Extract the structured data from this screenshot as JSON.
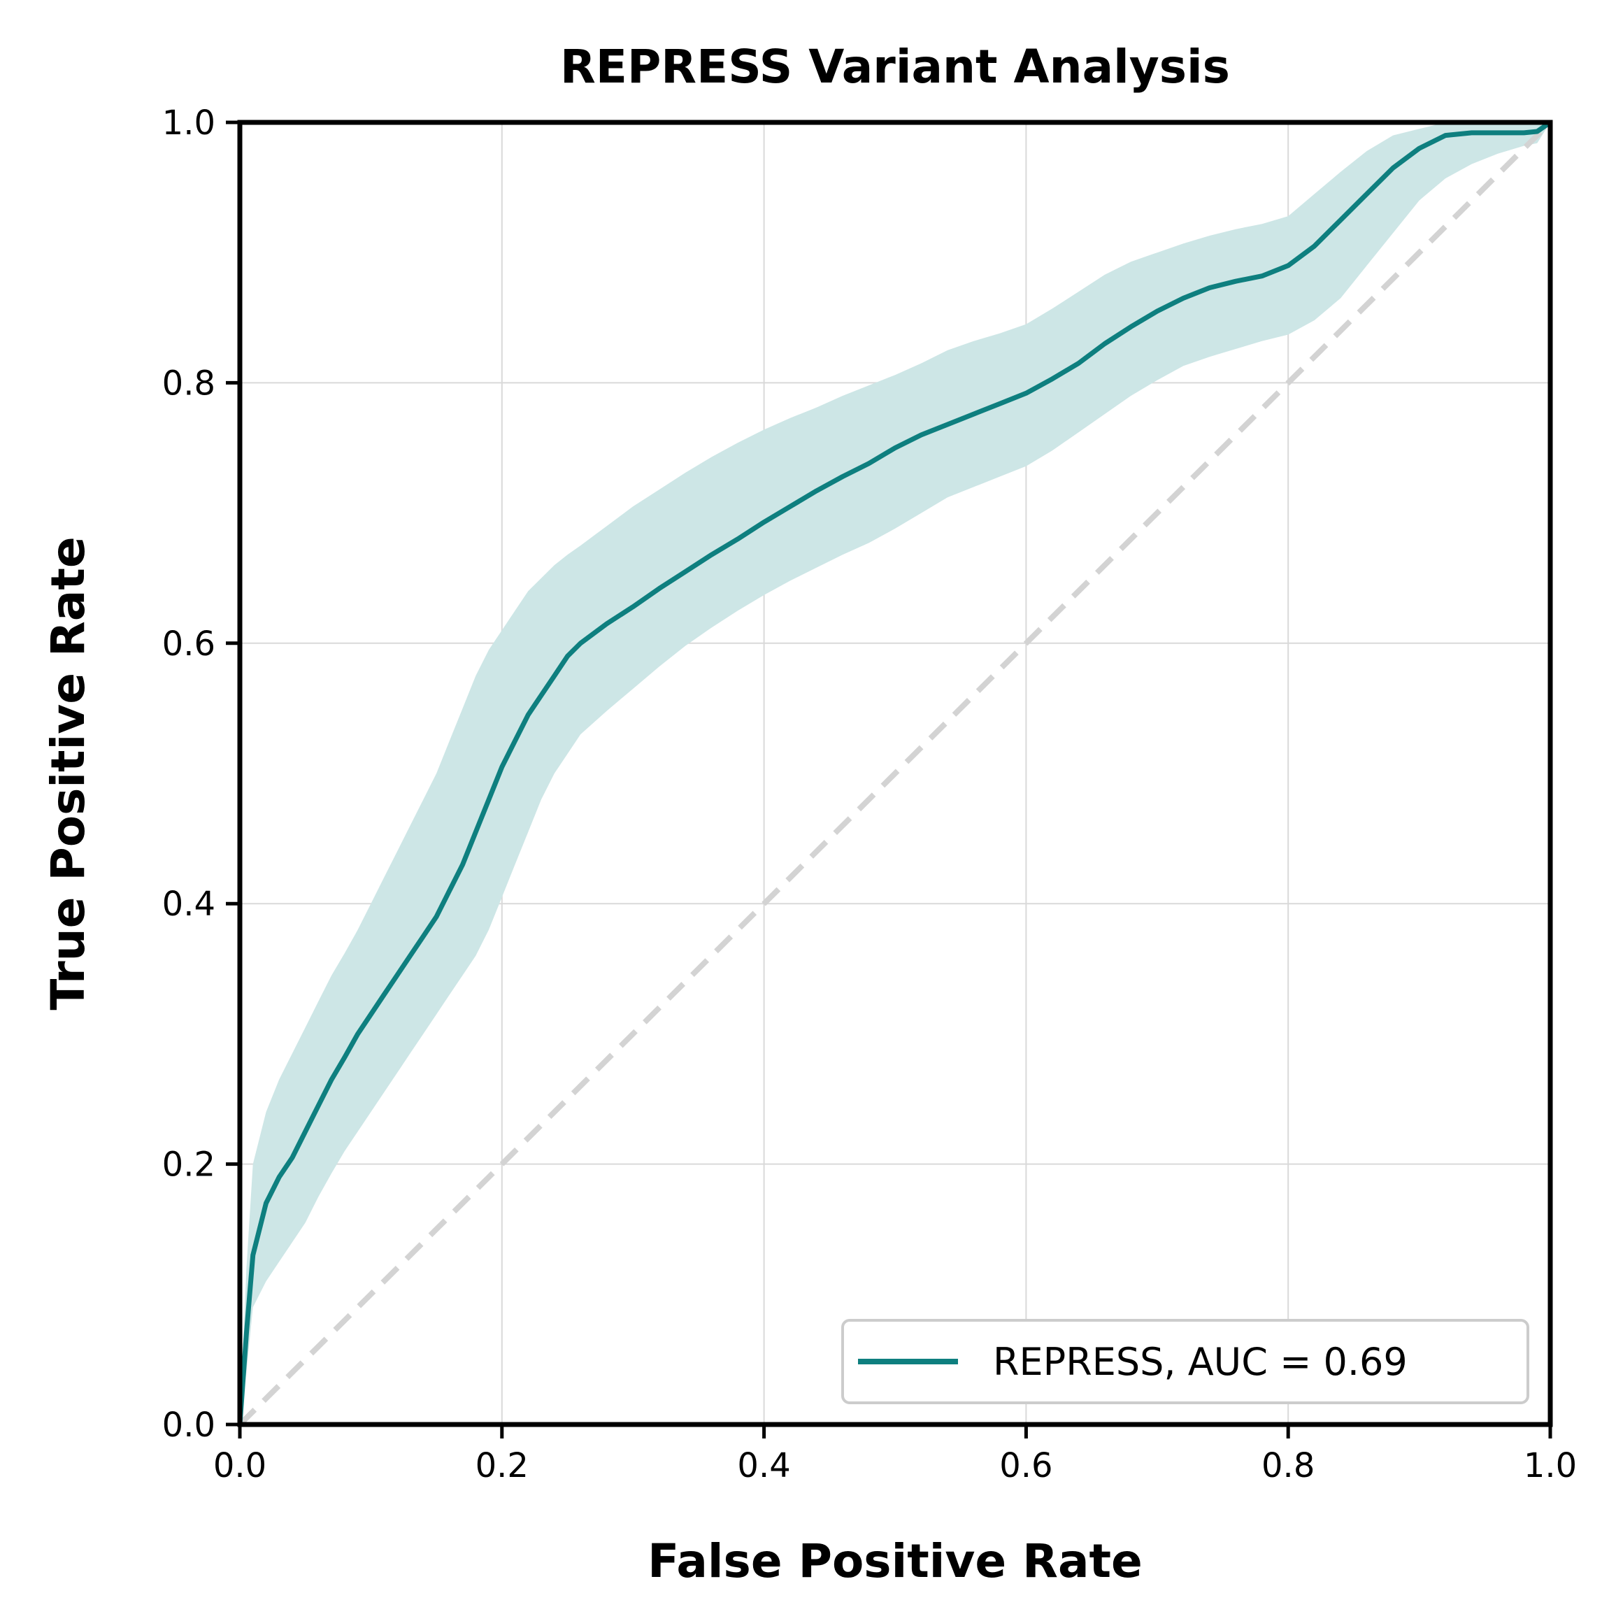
{
  "chart_data": {
    "type": "line",
    "title": "REPRESS Variant Analysis",
    "xlabel": "False Positive Rate",
    "ylabel": "True Positive Rate",
    "xlim": [
      0.0,
      1.0
    ],
    "ylim": [
      0.0,
      1.0
    ],
    "xticks": [
      "0.0",
      "0.2",
      "0.4",
      "0.6",
      "0.8",
      "1.0"
    ],
    "yticks": [
      "0.0",
      "0.2",
      "0.4",
      "0.6",
      "0.8",
      "1.0"
    ],
    "grid": true,
    "legend_position": "lower-right",
    "colors": {
      "roc": "#0e7f7f",
      "band": "#cde6e6",
      "chance": "#d3d3d3",
      "grid": "#d9d9d9",
      "axes": "#000000"
    },
    "series": [
      {
        "name": "REPRESS, AUC = 0.69",
        "x": [
          0.0,
          0.005,
          0.01,
          0.02,
          0.03,
          0.04,
          0.05,
          0.06,
          0.07,
          0.08,
          0.09,
          0.1,
          0.11,
          0.12,
          0.13,
          0.14,
          0.15,
          0.16,
          0.17,
          0.18,
          0.19,
          0.2,
          0.21,
          0.22,
          0.23,
          0.24,
          0.25,
          0.26,
          0.28,
          0.3,
          0.32,
          0.34,
          0.36,
          0.38,
          0.4,
          0.42,
          0.44,
          0.46,
          0.48,
          0.5,
          0.52,
          0.54,
          0.56,
          0.58,
          0.6,
          0.62,
          0.64,
          0.66,
          0.68,
          0.7,
          0.72,
          0.74,
          0.76,
          0.78,
          0.8,
          0.82,
          0.84,
          0.86,
          0.88,
          0.9,
          0.92,
          0.94,
          0.96,
          0.98,
          0.99,
          1.0
        ],
        "y": [
          0.0,
          0.07,
          0.13,
          0.17,
          0.19,
          0.205,
          0.225,
          0.245,
          0.265,
          0.282,
          0.3,
          0.315,
          0.33,
          0.345,
          0.36,
          0.375,
          0.39,
          0.41,
          0.43,
          0.455,
          0.48,
          0.505,
          0.525,
          0.545,
          0.56,
          0.575,
          0.59,
          0.6,
          0.615,
          0.628,
          0.642,
          0.655,
          0.668,
          0.68,
          0.693,
          0.705,
          0.717,
          0.728,
          0.738,
          0.75,
          0.76,
          0.768,
          0.776,
          0.784,
          0.792,
          0.803,
          0.815,
          0.83,
          0.843,
          0.855,
          0.865,
          0.873,
          0.878,
          0.882,
          0.89,
          0.905,
          0.925,
          0.945,
          0.965,
          0.98,
          0.99,
          0.992,
          0.992,
          0.992,
          0.993,
          1.0
        ],
        "upper": [
          0.0,
          0.12,
          0.2,
          0.24,
          0.265,
          0.285,
          0.305,
          0.325,
          0.345,
          0.362,
          0.38,
          0.4,
          0.42,
          0.44,
          0.46,
          0.48,
          0.5,
          0.525,
          0.55,
          0.575,
          0.595,
          0.61,
          0.625,
          0.64,
          0.65,
          0.66,
          0.668,
          0.675,
          0.69,
          0.705,
          0.718,
          0.731,
          0.743,
          0.754,
          0.764,
          0.773,
          0.781,
          0.79,
          0.798,
          0.806,
          0.815,
          0.825,
          0.832,
          0.838,
          0.845,
          0.857,
          0.87,
          0.883,
          0.893,
          0.9,
          0.907,
          0.913,
          0.918,
          0.922,
          0.928,
          0.945,
          0.962,
          0.978,
          0.99,
          0.995,
          1.0,
          1.0,
          1.0,
          1.0,
          1.0,
          1.0
        ],
        "lower": [
          0.0,
          0.04,
          0.09,
          0.11,
          0.125,
          0.14,
          0.155,
          0.175,
          0.193,
          0.21,
          0.225,
          0.24,
          0.255,
          0.27,
          0.285,
          0.3,
          0.315,
          0.33,
          0.345,
          0.36,
          0.38,
          0.405,
          0.43,
          0.455,
          0.48,
          0.5,
          0.515,
          0.53,
          0.548,
          0.565,
          0.582,
          0.598,
          0.612,
          0.625,
          0.637,
          0.648,
          0.658,
          0.668,
          0.677,
          0.688,
          0.7,
          0.712,
          0.72,
          0.728,
          0.736,
          0.748,
          0.762,
          0.776,
          0.79,
          0.802,
          0.813,
          0.82,
          0.826,
          0.832,
          0.837,
          0.848,
          0.865,
          0.89,
          0.915,
          0.94,
          0.957,
          0.968,
          0.976,
          0.982,
          0.984,
          1.0
        ]
      },
      {
        "name": "",
        "style": "dashed",
        "x": [
          0.0,
          1.0
        ],
        "y": [
          0.0,
          1.0
        ]
      }
    ]
  }
}
